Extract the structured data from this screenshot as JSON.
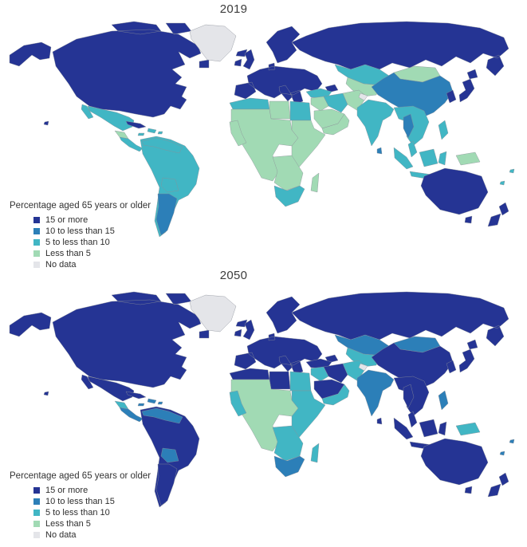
{
  "figure": {
    "legend": {
      "title": "Percentage aged 65 years or older",
      "entries": [
        {
          "key": "15_or_more",
          "label": "15 or more",
          "color": "#253494"
        },
        {
          "key": "10_to_15",
          "label": "10 to less than 15",
          "color": "#2c7fb8"
        },
        {
          "key": "5_to_10",
          "label": "5 to less than 10",
          "color": "#41b6c4"
        },
        {
          "key": "less_5",
          "label": "Less than 5",
          "color": "#a1dab4"
        },
        {
          "key": "no_data",
          "label": "No data",
          "color": "#e4e5e9"
        }
      ]
    },
    "map_style": {
      "border_color": "#8a8f98",
      "border_width": 0.4,
      "ocean_color": "#ffffff",
      "title_color": "#3c3c3c"
    },
    "panels": [
      {
        "title": "2019",
        "regions": {
          "usa_canada": "15_or_more",
          "greenland": "no_data",
          "iceland": "15_or_more",
          "mexico": "5_to_10",
          "guatemala_block": "less_5",
          "costa_panama_block": "5_to_10",
          "cuba": "15_or_more",
          "caribbean_islands": "5_to_10",
          "south_america_main": "5_to_10",
          "venezuela_guianas": "5_to_10",
          "bolivia_paraguay": "5_to_10",
          "southern_cone": "10_to_15",
          "europe": "15_or_more",
          "russia": "15_or_more",
          "caucasus": "15_or_more",
          "turkey": "5_to_10",
          "kazakhstan": "5_to_10",
          "central_asia_south": "less_5",
          "mongolia": "less_5",
          "china": "10_to_15",
          "korea": "15_or_more",
          "japan": "15_or_more",
          "levant_iraq": "less_5",
          "iran": "5_to_10",
          "saudi_gulf": "less_5",
          "yemen_oman": "less_5",
          "pakistan_afghanistan": "less_5",
          "kashmir": "no_data",
          "india": "5_to_10",
          "sri_lanka": "10_to_15",
          "maghreb": "5_to_10",
          "libya": "less_5",
          "egypt": "5_to_10",
          "sub_saharan": "less_5",
          "west_coast": "less_5",
          "east_africa": "less_5",
          "southern_belt": "less_5",
          "south_africa": "5_to_10",
          "madagascar": "less_5",
          "indochina": "5_to_10",
          "thailand": "10_to_15",
          "indonesia_malaysia": "5_to_10",
          "philippines": "5_to_10",
          "png": "less_5",
          "pacific_islands": "5_to_10",
          "australia": "15_or_more",
          "new_zealand": "15_or_more"
        }
      },
      {
        "title": "2050",
        "regions": {
          "usa_canada": "15_or_more",
          "greenland": "no_data",
          "iceland": "15_or_more",
          "mexico": "15_or_more",
          "guatemala_block": "5_to_10",
          "costa_panama_block": "10_to_15",
          "cuba": "15_or_more",
          "caribbean_islands": "10_to_15",
          "south_america_main": "15_or_more",
          "venezuela_guianas": "10_to_15",
          "bolivia_paraguay": "10_to_15",
          "southern_cone": "15_or_more",
          "europe": "15_or_more",
          "russia": "15_or_more",
          "caucasus": "15_or_more",
          "turkey": "15_or_more",
          "kazakhstan": "10_to_15",
          "central_asia_south": "5_to_10",
          "mongolia": "10_to_15",
          "china": "15_or_more",
          "korea": "15_or_more",
          "japan": "15_or_more",
          "levant_iraq": "5_to_10",
          "iran": "15_or_more",
          "saudi_gulf": "15_or_more",
          "yemen_oman": "5_to_10",
          "pakistan_afghanistan": "5_to_10",
          "kashmir": "no_data",
          "india": "10_to_15",
          "sri_lanka": "15_or_more",
          "maghreb": "15_or_more",
          "libya": "15_or_more",
          "egypt": "5_to_10",
          "sub_saharan": "less_5",
          "west_coast": "5_to_10",
          "east_africa": "5_to_10",
          "southern_belt": "5_to_10",
          "south_africa": "10_to_15",
          "madagascar": "5_to_10",
          "indochina": "15_or_more",
          "thailand": "15_or_more",
          "indonesia_malaysia": "15_or_more",
          "philippines": "10_to_15",
          "png": "5_to_10",
          "pacific_islands": "10_to_15",
          "australia": "15_or_more",
          "new_zealand": "15_or_more"
        }
      }
    ]
  }
}
